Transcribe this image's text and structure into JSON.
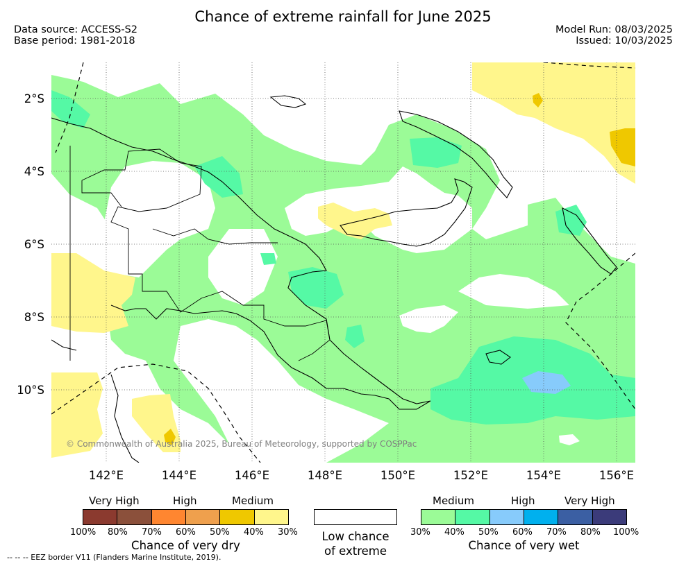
{
  "title": "Chance of extreme rainfall for June 2025",
  "meta": {
    "data_source": "Data source: ACCESS-S2",
    "base_period": "Base period: 1981-2018",
    "model_run": "Model Run: 08/03/2025",
    "issued": "Issued: 10/03/2025"
  },
  "map": {
    "lat_labels": [
      "2°S",
      "4°S",
      "6°S",
      "8°S",
      "10°S"
    ],
    "lon_labels": [
      "142°E",
      "144°E",
      "146°E",
      "148°E",
      "150°E",
      "152°E",
      "154°E",
      "156°E"
    ],
    "copyright": "© Commonwealth of Australia 2025, Bureau of Meteorology, supported by COSPPac"
  },
  "legend": {
    "dry": {
      "categories": [
        "Very High",
        "High",
        "Medium"
      ],
      "ticks": [
        "100%",
        "80%",
        "70%",
        "60%",
        "50%",
        "40%",
        "30%"
      ],
      "colors": [
        "#8b3a2f",
        "#8b503b",
        "#ff8630",
        "#efa04d",
        "#efc800",
        "#fff68c"
      ],
      "caption": "Chance of very dry"
    },
    "neutral": {
      "caption_line1": "Low chance",
      "caption_line2": "of extreme",
      "color": "#ffffff"
    },
    "wet": {
      "categories": [
        "Medium",
        "High",
        "Very High"
      ],
      "ticks": [
        "30%",
        "40%",
        "50%",
        "60%",
        "70%",
        "80%",
        "100%"
      ],
      "colors": [
        "#9bfb97",
        "#55f9a5",
        "#87cbfb",
        "#00b0ee",
        "#3b5fa3",
        "#3b3b7a"
      ],
      "caption": "Chance of very wet"
    }
  },
  "eez_note": "--  --  -- EEZ border V11 (Flanders Marine Institute, 2019)."
}
